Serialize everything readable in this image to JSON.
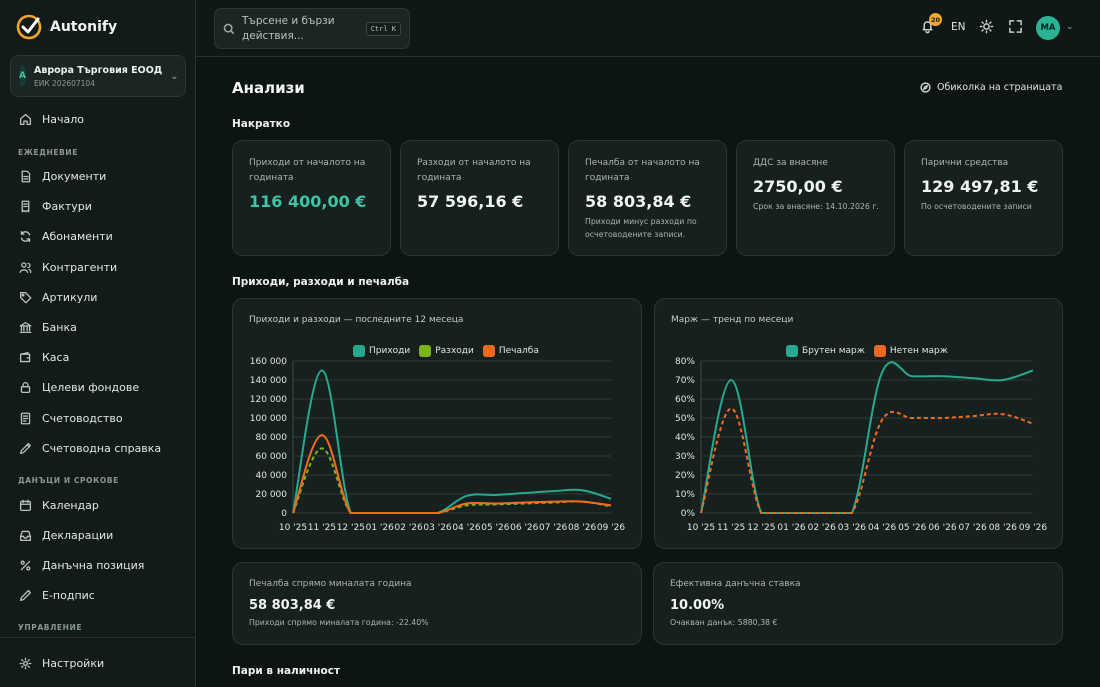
{
  "app": {
    "name": "Autonify"
  },
  "company": {
    "initial": "A",
    "name": "Аврора Търговия ЕООД",
    "id": "ЕИК 202607104"
  },
  "sidebar": {
    "items_top": [
      {
        "label": "Начало",
        "icon": "home-icon"
      }
    ],
    "section_daily": "ЕЖЕДНЕВИЕ",
    "items_daily": [
      {
        "label": "Документи",
        "icon": "document-icon"
      },
      {
        "label": "Фактури",
        "icon": "invoice-icon"
      },
      {
        "label": "Абонаменти",
        "icon": "refresh-icon"
      },
      {
        "label": "Контрагенти",
        "icon": "users-icon"
      },
      {
        "label": "Артикули",
        "icon": "tag-icon"
      },
      {
        "label": "Банка",
        "icon": "bank-icon"
      },
      {
        "label": "Каса",
        "icon": "wallet-icon"
      },
      {
        "label": "Целеви фондове",
        "icon": "lock-icon"
      },
      {
        "label": "Счетоводство",
        "icon": "ledger-icon"
      },
      {
        "label": "Счетоводна справка",
        "icon": "pencil-icon"
      }
    ],
    "section_taxes": "ДАНЪЦИ И СРОКОВЕ",
    "items_taxes": [
      {
        "label": "Календар",
        "icon": "calendar-icon"
      },
      {
        "label": "Декларации",
        "icon": "inbox-icon"
      },
      {
        "label": "Данъчна позиция",
        "icon": "percent-icon"
      },
      {
        "label": "Е-подпис",
        "icon": "signature-icon"
      }
    ],
    "section_manage": "УПРАВЛЕНИЕ",
    "settings": {
      "label": "Настройки",
      "icon": "gear-icon"
    }
  },
  "topbar": {
    "search_placeholder": "Търсене и бързи действия...",
    "shortcut": "Ctrl K",
    "notifications_count": "20",
    "lang": "EN",
    "user_initials": "МА"
  },
  "page": {
    "title": "Анализи",
    "tour": "Обиколка на страницата",
    "summary_heading": "Накратко",
    "charts_heading": "Приходи, разходи и печалба",
    "cash_heading": "Пари в наличност"
  },
  "kpis": [
    {
      "label": "Приходи от началото на годината",
      "value": "116 400,00 €",
      "sub": "",
      "accent": "#3fc3a5"
    },
    {
      "label": "Разходи от началото на годината",
      "value": "57 596,16 €",
      "sub": ""
    },
    {
      "label": "Печалба от началото на годината",
      "value": "58 803,84 €",
      "sub": "Приходи минус разходи по осчетоводените записи."
    },
    {
      "label": "ДДС за внасяне",
      "value": "2750,00 €",
      "sub": "Срок за внасяне: 14.10.2026 г."
    },
    {
      "label": "Парични средства",
      "value": "129 497,81 €",
      "sub": "По осчетоводените записи"
    }
  ],
  "chart_data": [
    {
      "type": "line",
      "title": "Приходи и разходи — последните 12 месеца",
      "categories": [
        "10 '25",
        "11 '25",
        "12 '25",
        "01 '26",
        "02 '26",
        "03 '26",
        "04 '26",
        "05 '26",
        "06 '26",
        "07 '26",
        "08 '26",
        "09 '26"
      ],
      "yticks": [
        "0",
        "20 000",
        "40 000",
        "60 000",
        "80 000",
        "100 000",
        "120 000",
        "140 000",
        "160 000"
      ],
      "ylim": [
        0,
        160000
      ],
      "legend_position": "top-center",
      "grid": true,
      "series": [
        {
          "name": "Приходи",
          "color": "#27a98f",
          "dashed": false,
          "values": [
            0,
            150000,
            0,
            0,
            0,
            0,
            18000,
            19000,
            21000,
            23000,
            24000,
            15000
          ]
        },
        {
          "name": "Разходи",
          "color": "#7cb518",
          "dashed": true,
          "values": [
            0,
            68000,
            0,
            0,
            0,
            0,
            8000,
            9000,
            10000,
            11000,
            12000,
            7000
          ]
        },
        {
          "name": "Печалба",
          "color": "#f26b1d",
          "dashed": false,
          "values": [
            0,
            82000,
            0,
            0,
            0,
            0,
            10000,
            10000,
            11000,
            12000,
            12000,
            8000
          ]
        }
      ]
    },
    {
      "type": "line",
      "title": "Марж — тренд по месеци",
      "categories": [
        "10 '25",
        "11 '25",
        "12 '25",
        "01 '26",
        "02 '26",
        "03 '26",
        "04 '26",
        "05 '26",
        "06 '26",
        "07 '26",
        "08 '26",
        "09 '26"
      ],
      "yticks": [
        "0%",
        "10%",
        "20%",
        "30%",
        "40%",
        "50%",
        "60%",
        "70%",
        "80%"
      ],
      "ylim": [
        0,
        80
      ],
      "legend_position": "top-center",
      "grid": true,
      "series": [
        {
          "name": "Брутен марж",
          "color": "#27a98f",
          "dashed": false,
          "values": [
            0,
            70,
            0,
            0,
            0,
            0,
            74,
            72,
            72,
            71,
            70,
            75
          ]
        },
        {
          "name": "Нетен марж",
          "color": "#f26b1d",
          "dashed": true,
          "values": [
            0,
            55,
            0,
            0,
            0,
            0,
            49,
            50,
            50,
            51,
            52,
            47
          ]
        }
      ]
    }
  ],
  "bottom_cards": [
    {
      "label": "Печалба спрямо миналата година",
      "value": "58 803,84 €",
      "sub": "Приходи спрямо миналата година: -22.40%"
    },
    {
      "label": "Ефективна данъчна ставка",
      "value": "10.00%",
      "sub": "Очакван данък: 5880,38 €"
    }
  ]
}
